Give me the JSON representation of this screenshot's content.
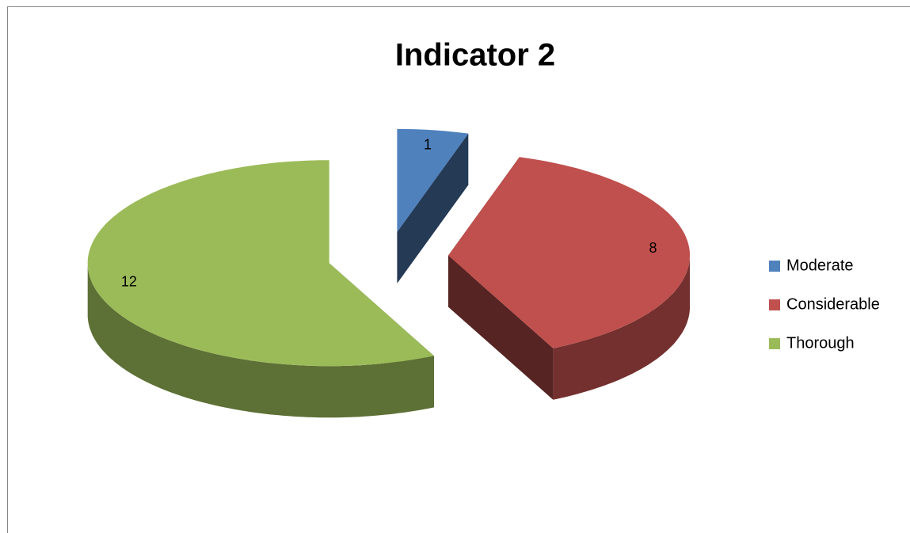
{
  "chart_data": {
    "type": "pie",
    "title": "Indicator 2",
    "categories": [
      "Moderate",
      "Considerable",
      "Thorough"
    ],
    "values": [
      1,
      8,
      12
    ],
    "colors": [
      "#4f81bd",
      "#c0504d",
      "#9bbb59"
    ],
    "legend": "right"
  }
}
